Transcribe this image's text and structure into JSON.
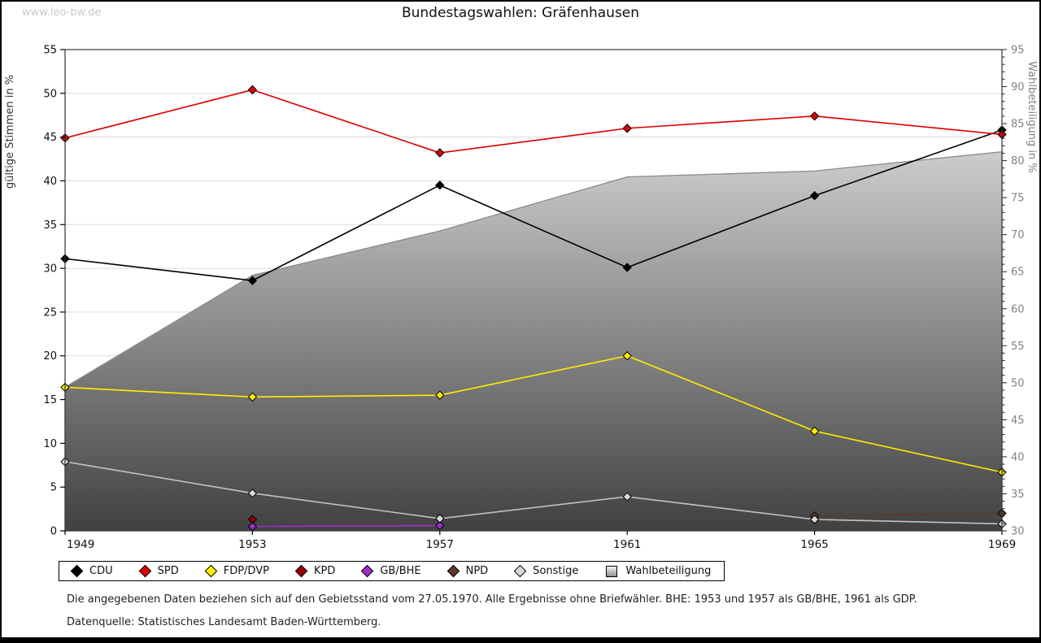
{
  "watermark": "www.leo-bw.de",
  "title": "Bundestagswahlen: Gräfenhausen",
  "footnotes": {
    "line1": "Die angegebenen Daten beziehen sich auf den Gebietsstand vom 27.05.1970. Alle Ergebnisse ohne Briefwähler. BHE: 1953 und 1957 als GB/BHE, 1961 als GDP.",
    "line2": "Datenquelle: Statistisches Landesamt Baden-Württemberg."
  },
  "chart_data": {
    "type": "line",
    "title": "Bundestagswahlen: Gräfenhausen",
    "x": [
      1949,
      1953,
      1957,
      1961,
      1965,
      1969
    ],
    "left_axis": {
      "label": "gültige Stimmen in %",
      "min": 0,
      "max": 55,
      "step": 5
    },
    "right_axis": {
      "label": "Wahlbeteiligung in %",
      "min": 30,
      "max": 95,
      "step": 5
    },
    "grid": true,
    "legend_position": "bottom",
    "series": [
      {
        "name": "CDU",
        "color": "#000000",
        "axis": "left",
        "kind": "line",
        "values": [
          31.1,
          28.6,
          39.5,
          30.1,
          38.3,
          45.8
        ]
      },
      {
        "name": "SPD",
        "color": "#dd0000",
        "axis": "left",
        "kind": "line",
        "values": [
          44.9,
          50.4,
          43.2,
          46.0,
          47.4,
          45.3
        ]
      },
      {
        "name": "FDP/DVP",
        "color": "#ffee00",
        "axis": "left",
        "kind": "line",
        "values": [
          16.4,
          15.3,
          15.5,
          20.0,
          11.4,
          6.7
        ]
      },
      {
        "name": "KPD",
        "color": "#990000",
        "axis": "left",
        "kind": "line",
        "values": [
          null,
          1.3,
          null,
          null,
          null,
          null
        ]
      },
      {
        "name": "GB/BHE",
        "color": "#9b30c8",
        "axis": "left",
        "kind": "line",
        "values": [
          null,
          0.5,
          0.6,
          null,
          null,
          null
        ]
      },
      {
        "name": "NPD",
        "color": "#5e3a28",
        "axis": "left",
        "kind": "line",
        "values": [
          null,
          null,
          null,
          null,
          1.7,
          2.0
        ]
      },
      {
        "name": "Sonstige",
        "color": "#cfcfcf",
        "axis": "left",
        "kind": "line",
        "values": [
          7.9,
          4.3,
          1.4,
          3.9,
          1.3,
          0.8
        ]
      },
      {
        "name": "Wahlbeteiligung",
        "color": "#8a8a8a",
        "axis": "right",
        "kind": "area",
        "values": [
          49.4,
          64.5,
          70.5,
          77.8,
          78.6,
          81.2
        ]
      }
    ]
  },
  "colors": {
    "grid": "#dcdcdc",
    "axis": "#333333",
    "right_axis_text": "#828282",
    "area_gradient_top": "#f2f2f2",
    "area_gradient_bottom": "#414141"
  }
}
